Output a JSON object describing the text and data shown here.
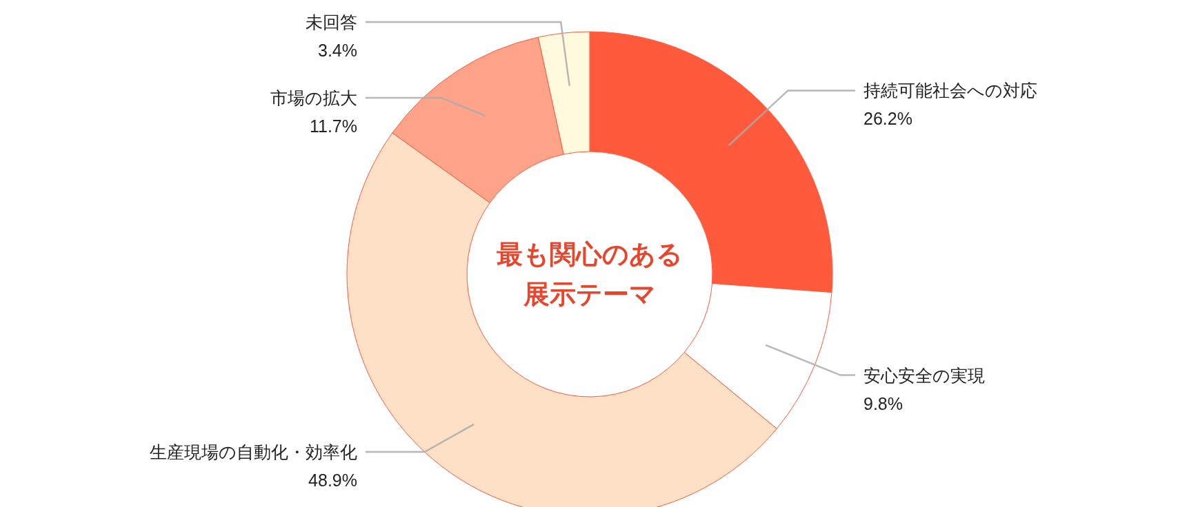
{
  "chart_data": {
    "type": "donut",
    "title": "最も関心のある展示テーマ",
    "categories": [
      "持続可能社会への対応",
      "安心安全の実現",
      "生産現場の自動化・効率化",
      "市場の拡大",
      "未回答"
    ],
    "values": [
      26.2,
      9.8,
      48.9,
      11.7,
      3.4
    ],
    "colors": [
      "#ff5a3c",
      "#ffffff",
      "#fde0c6",
      "#ffa488",
      "#fff9dd"
    ],
    "value_labels": [
      "26.2%",
      "9.8%",
      "48.9%",
      "11.7%",
      "3.4%"
    ]
  }
}
